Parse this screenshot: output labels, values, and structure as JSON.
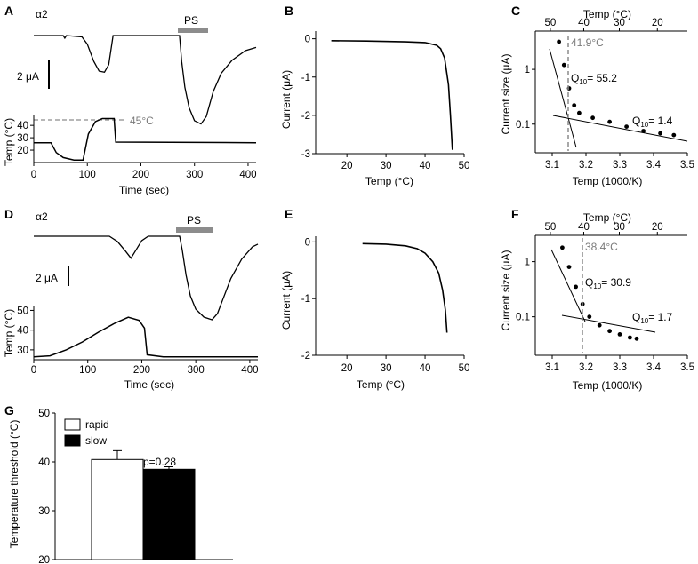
{
  "panels": [
    {
      "letter": "A",
      "type": "line",
      "subunit": "α2",
      "bar_label": "PS",
      "scale_label": "2 μA",
      "threshold_label": "45°C",
      "current_trace": [
        [
          0,
          0.0
        ],
        [
          55,
          0.0
        ],
        [
          58,
          -0.12
        ],
        [
          61,
          0.0
        ],
        [
          90,
          -0.06
        ],
        [
          100,
          -0.4
        ],
        [
          112,
          -1.2
        ],
        [
          122,
          -1.65
        ],
        [
          132,
          -1.7
        ],
        [
          140,
          -1.35
        ],
        [
          148,
          0.0
        ],
        [
          272,
          0.0
        ],
        [
          276,
          -1.2
        ],
        [
          282,
          -2.4
        ],
        [
          290,
          -3.35
        ],
        [
          300,
          -3.95
        ],
        [
          312,
          -4.1
        ],
        [
          322,
          -3.75
        ],
        [
          335,
          -2.6
        ],
        [
          350,
          -1.75
        ],
        [
          370,
          -1.15
        ],
        [
          395,
          -0.7
        ],
        [
          415,
          -0.55
        ]
      ],
      "x_axis": {
        "title": "Time (sec)",
        "range": [
          0,
          415
        ],
        "ticks": [
          0,
          100,
          200,
          300,
          400
        ]
      },
      "y_axis": {
        "title": "Temp (°C)",
        "range": [
          10,
          48
        ],
        "ticks": [
          20,
          30,
          40
        ]
      },
      "series": [
        {
          "values": [
            [
              0,
              26
            ],
            [
              32,
              26
            ],
            [
              42,
              18
            ],
            [
              55,
              14
            ],
            [
              75,
              12
            ],
            [
              92,
              12
            ],
            [
              102,
              33
            ],
            [
              115,
              43
            ],
            [
              128,
              45.5
            ],
            [
              150,
              45.5
            ],
            [
              153,
              26.5
            ],
            [
              415,
              26
            ]
          ]
        }
      ]
    },
    {
      "letter": "B",
      "type": "line",
      "x_axis": {
        "title": "Temp (°C)",
        "range": [
          12,
          50
        ],
        "ticks": [
          20,
          30,
          40,
          50
        ]
      },
      "y_axis": {
        "title": "Current (μA)",
        "range": [
          -3,
          0.2
        ],
        "ticks": [
          0,
          -1,
          -2,
          -3
        ]
      },
      "series": [
        {
          "values": [
            [
              16,
              -0.05
            ],
            [
              25,
              -0.06
            ],
            [
              35,
              -0.08
            ],
            [
              40,
              -0.1
            ],
            [
              43,
              -0.17
            ],
            [
              44,
              -0.26
            ],
            [
              45,
              -0.5
            ],
            [
              46,
              -1.2
            ],
            [
              46.5,
              -2.0
            ],
            [
              47,
              -2.9
            ]
          ]
        }
      ]
    },
    {
      "letter": "C",
      "type": "scatter",
      "top_axis_title": "Temp (°C)",
      "top_ticks": [
        50,
        40,
        30,
        20
      ],
      "threshold_label": "41.9°C",
      "annotations": [
        {
          "q": "Q",
          "sub": "10",
          "text": "= 55.2"
        },
        {
          "q": "Q",
          "sub": "10",
          "text": "= 1.4"
        }
      ],
      "x_axis": {
        "title": "Temp (1000/K)",
        "range": [
          3.05,
          3.5
        ],
        "ticks": [
          3.1,
          3.2,
          3.3,
          3.4,
          3.5
        ]
      },
      "y_axis": {
        "title": "Current size (μA)",
        "scale": "log",
        "range": [
          0.03,
          5
        ],
        "ticks": [
          1,
          0.1
        ]
      },
      "series": [
        {
          "values": [
            [
              3.12,
              3.2
            ],
            [
              3.135,
              1.2
            ],
            [
              3.15,
              0.45
            ],
            [
              3.165,
              0.22
            ],
            [
              3.18,
              0.16
            ],
            [
              3.22,
              0.13
            ],
            [
              3.27,
              0.11
            ],
            [
              3.32,
              0.09
            ],
            [
              3.37,
              0.075
            ],
            [
              3.42,
              0.068
            ],
            [
              3.46,
              0.063
            ]
          ]
        }
      ]
    },
    {
      "letter": "D",
      "type": "line",
      "subunit": "α2",
      "bar_label": "PS",
      "scale_label": "2 μA",
      "current_trace": [
        [
          0,
          0.0
        ],
        [
          140,
          0.0
        ],
        [
          155,
          -0.3
        ],
        [
          170,
          -0.85
        ],
        [
          180,
          -1.25
        ],
        [
          190,
          -0.75
        ],
        [
          200,
          -0.25
        ],
        [
          212,
          0.0
        ],
        [
          270,
          0.0
        ],
        [
          275,
          -0.8
        ],
        [
          282,
          -2.2
        ],
        [
          290,
          -3.4
        ],
        [
          300,
          -4.15
        ],
        [
          315,
          -4.6
        ],
        [
          330,
          -4.75
        ],
        [
          340,
          -4.4
        ],
        [
          350,
          -3.6
        ],
        [
          365,
          -2.4
        ],
        [
          385,
          -1.3
        ],
        [
          405,
          -0.6
        ],
        [
          415,
          -0.45
        ]
      ],
      "x_axis": {
        "title": "Time (sec)",
        "range": [
          0,
          415
        ],
        "ticks": [
          0,
          100,
          200,
          300,
          400
        ]
      },
      "y_axis": {
        "title": "Temp (°C)",
        "range": [
          25,
          52
        ],
        "ticks": [
          30,
          40,
          50
        ]
      },
      "series": [
        {
          "values": [
            [
              0,
              26.5
            ],
            [
              30,
              27
            ],
            [
              60,
              30
            ],
            [
              90,
              34
            ],
            [
              120,
              39
            ],
            [
              150,
              43.5
            ],
            [
              175,
              46.5
            ],
            [
              195,
              45
            ],
            [
              205,
              41
            ],
            [
              210,
              27.5
            ],
            [
              240,
              26.5
            ],
            [
              415,
              26.5
            ]
          ]
        }
      ]
    },
    {
      "letter": "E",
      "type": "line",
      "x_axis": {
        "title": "Temp (°C)",
        "range": [
          12,
          50
        ],
        "ticks": [
          20,
          30,
          40,
          50
        ]
      },
      "y_axis": {
        "title": "Current (μA)",
        "range": [
          -2,
          0.1
        ],
        "ticks": [
          0,
          -1,
          -2
        ]
      },
      "series": [
        {
          "values": [
            [
              24,
              -0.03
            ],
            [
              30,
              -0.04
            ],
            [
              35,
              -0.07
            ],
            [
              38,
              -0.12
            ],
            [
              40,
              -0.2
            ],
            [
              42,
              -0.35
            ],
            [
              43.5,
              -0.55
            ],
            [
              44.5,
              -0.85
            ],
            [
              45.2,
              -1.2
            ],
            [
              45.6,
              -1.6
            ]
          ]
        }
      ]
    },
    {
      "letter": "F",
      "type": "scatter",
      "top_axis_title": "Temp (°C)",
      "top_ticks": [
        50,
        40,
        30,
        20
      ],
      "threshold_label": "38.4°C",
      "annotations": [
        {
          "q": "Q",
          "sub": "10",
          "text": "= 30.9"
        },
        {
          "q": "Q",
          "sub": "10",
          "text": "= 1.7"
        }
      ],
      "x_axis": {
        "title": "Temp (1000/K)",
        "range": [
          3.05,
          3.5
        ],
        "ticks": [
          3.1,
          3.2,
          3.3,
          3.4,
          3.5
        ]
      },
      "y_axis": {
        "title": "Current size (μA)",
        "scale": "log",
        "range": [
          0.02,
          3
        ],
        "ticks": [
          1,
          0.1
        ]
      },
      "series": [
        {
          "values": [
            [
              3.13,
              1.8
            ],
            [
              3.15,
              0.8
            ],
            [
              3.17,
              0.35
            ],
            [
              3.19,
              0.17
            ],
            [
              3.21,
              0.1
            ],
            [
              3.24,
              0.07
            ],
            [
              3.27,
              0.055
            ],
            [
              3.3,
              0.048
            ],
            [
              3.33,
              0.042
            ],
            [
              3.35,
              0.04
            ]
          ]
        }
      ]
    },
    {
      "letter": "G",
      "type": "bar",
      "categories": [
        "rapid",
        "slow"
      ],
      "values": [
        40.5,
        38.5
      ],
      "errors": [
        1.8,
        0.5
      ],
      "significance": "p=0.28",
      "y_axis": {
        "title": "Temperature threshold (°C)",
        "range": [
          20,
          50
        ],
        "ticks": [
          20,
          30,
          40,
          50
        ]
      }
    }
  ],
  "colors": {
    "ink": "#000000",
    "threshold": "#8c8c8c",
    "bar_rapid": "#ffffff",
    "bar_slow": "#000000"
  }
}
